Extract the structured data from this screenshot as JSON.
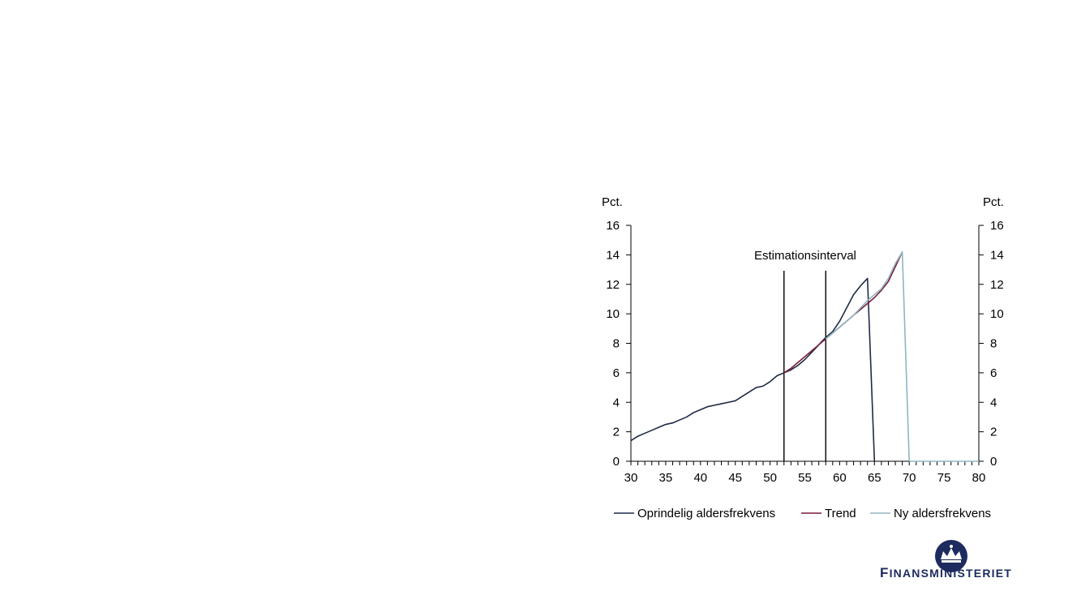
{
  "chart_data": {
    "type": "line",
    "left_unit": "Pct.",
    "right_unit": "Pct.",
    "xlim": [
      30,
      80
    ],
    "ylim": [
      0,
      16
    ],
    "x_ticks": [
      30,
      35,
      40,
      45,
      50,
      55,
      60,
      65,
      70,
      75,
      80
    ],
    "y_ticks": [
      0,
      2,
      4,
      6,
      8,
      10,
      12,
      14,
      16
    ],
    "annotation": "Estimationsinterval",
    "vlines": [
      52,
      58
    ],
    "series": [
      {
        "name": "Oprindelig aldersfrekvens",
        "color": "#1f2a44",
        "x": [
          30,
          31,
          32,
          33,
          34,
          35,
          36,
          37,
          38,
          39,
          40,
          41,
          42,
          43,
          44,
          45,
          46,
          47,
          48,
          49,
          50,
          51,
          52,
          53,
          54,
          55,
          56,
          57,
          58,
          59,
          60,
          61,
          62,
          63,
          64,
          65
        ],
        "y": [
          1.4,
          1.7,
          1.9,
          2.1,
          2.3,
          2.5,
          2.6,
          2.8,
          3.0,
          3.3,
          3.5,
          3.7,
          3.8,
          3.9,
          4.0,
          4.1,
          4.4,
          4.7,
          5.0,
          5.1,
          5.4,
          5.8,
          6.0,
          6.2,
          6.5,
          6.9,
          7.4,
          7.9,
          8.4,
          8.8,
          9.5,
          10.4,
          11.3,
          11.9,
          12.4,
          0.0
        ]
      },
      {
        "name": "Trend",
        "color": "#7b1c3a",
        "x": [
          52,
          53,
          54,
          55,
          56,
          57,
          58,
          59,
          60,
          61,
          62,
          63,
          64,
          65,
          66,
          67,
          68,
          69
        ],
        "y": [
          6.0,
          6.3,
          6.7,
          7.1,
          7.5,
          7.9,
          8.3,
          8.7,
          9.1,
          9.5,
          9.9,
          10.3,
          10.7,
          11.1,
          11.6,
          12.2,
          13.2,
          14.2
        ]
      },
      {
        "name": "Ny aldersfrekvens",
        "color": "#8fb5c1",
        "x": [
          58,
          59,
          60,
          61,
          62,
          63,
          64,
          65,
          66,
          67,
          68,
          69,
          70
        ],
        "y": [
          8.3,
          8.7,
          9.1,
          9.5,
          9.9,
          10.4,
          10.9,
          11.3,
          11.7,
          12.4,
          13.4,
          14.2,
          0.0
        ]
      }
    ],
    "baseline_zero_to": 80,
    "legend_position": "bottom"
  },
  "logo": {
    "text_first": "F",
    "text_rest": "INANSMINISTERIET",
    "color": "#1d2b5e"
  }
}
